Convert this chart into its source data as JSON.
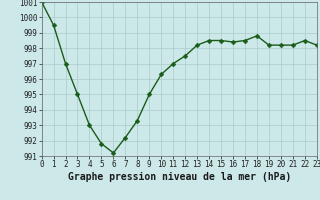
{
  "x": [
    0,
    1,
    2,
    3,
    4,
    5,
    6,
    7,
    8,
    9,
    10,
    11,
    12,
    13,
    14,
    15,
    16,
    17,
    18,
    19,
    20,
    21,
    22,
    23
  ],
  "y": [
    1001,
    999.5,
    997,
    995,
    993,
    991.8,
    991.2,
    992.2,
    993.3,
    995,
    996.3,
    997,
    997.5,
    998.2,
    998.5,
    998.5,
    998.4,
    998.5,
    998.8,
    998.2,
    998.2,
    998.2,
    998.5,
    998.2
  ],
  "line_color": "#1a5c1a",
  "marker_color": "#1a5c1a",
  "bg_color": "#cce8e8",
  "grid_color": "#aacccc",
  "xlabel": "Graphe pression niveau de la mer (hPa)",
  "ylim": [
    991,
    1001
  ],
  "xlim": [
    0,
    23
  ],
  "yticks": [
    991,
    992,
    993,
    994,
    995,
    996,
    997,
    998,
    999,
    1000,
    1001
  ],
  "xticks": [
    0,
    1,
    2,
    3,
    4,
    5,
    6,
    7,
    8,
    9,
    10,
    11,
    12,
    13,
    14,
    15,
    16,
    17,
    18,
    19,
    20,
    21,
    22,
    23
  ],
  "tick_fontsize": 5.5,
  "xlabel_fontsize": 7,
  "marker_size": 2.5,
  "line_width": 1.0
}
